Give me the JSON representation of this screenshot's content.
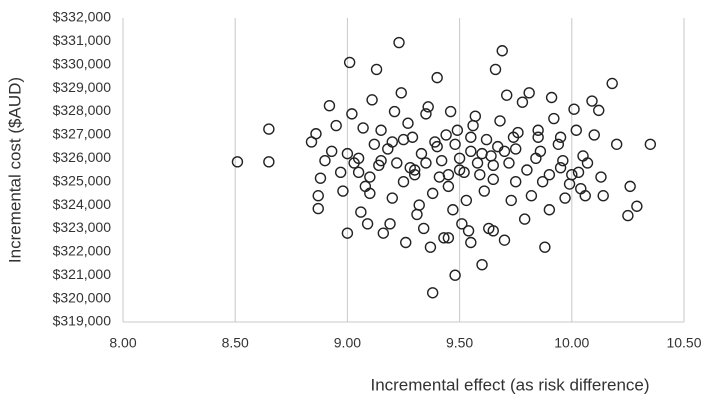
{
  "chart_data": {
    "type": "scatter",
    "x_label": "Incremental effect (as risk difference)",
    "y_label": "Incremental cost ($AUD)",
    "xlim": [
      8.0,
      10.5
    ],
    "ylim": [
      319000,
      332000
    ],
    "xticks": [
      {
        "value": 8.0,
        "label": "8.00"
      },
      {
        "value": 8.5,
        "label": "8.50"
      },
      {
        "value": 9.0,
        "label": "9.00"
      },
      {
        "value": 9.5,
        "label": "9.50"
      },
      {
        "value": 10.0,
        "label": "10.00"
      },
      {
        "value": 10.5,
        "label": "10.50"
      }
    ],
    "yticks": [
      {
        "value": 319000,
        "label": "$319,000"
      },
      {
        "value": 320000,
        "label": "$320,000"
      },
      {
        "value": 321000,
        "label": "$321,000"
      },
      {
        "value": 322000,
        "label": "$322,000"
      },
      {
        "value": 323000,
        "label": "$323,000"
      },
      {
        "value": 324000,
        "label": "$324,000"
      },
      {
        "value": 325000,
        "label": "$325,000"
      },
      {
        "value": 326000,
        "label": "$326,000"
      },
      {
        "value": 327000,
        "label": "$327,000"
      },
      {
        "value": 328000,
        "label": "$328,000"
      },
      {
        "value": 329000,
        "label": "$329,000"
      },
      {
        "value": 330000,
        "label": "$330,000"
      },
      {
        "value": 331000,
        "label": "$331,000"
      },
      {
        "value": 332000,
        "label": "$332,000"
      }
    ],
    "grid": true,
    "color": "#222222",
    "x": [
      8.51,
      8.65,
      8.65,
      9.01,
      9.23,
      9.69,
      9.38,
      9.48,
      9.6,
      9.88,
      9.0,
      10.18,
      10.35,
      10.29,
      10.25,
      10.26,
      10.14,
      10.2,
      10.09,
      10.12,
      9.13,
      9.4,
      9.66,
      8.87,
      8.87,
      8.84,
      8.92,
      8.86,
      8.88,
      8.95,
      9.05,
      9.1,
      9.15,
      9.2,
      9.25,
      9.3,
      9.35,
      9.45,
      9.55,
      9.65,
      9.75,
      9.85,
      9.95,
      10.05,
      9.5,
      9.52,
      9.48,
      9.58,
      9.42,
      9.62,
      9.33,
      9.44,
      9.56,
      9.67,
      9.72,
      9.28,
      9.38,
      9.47,
      9.53,
      9.61,
      9.18,
      9.22,
      9.27,
      9.31,
      9.36,
      9.41,
      9.46,
      9.51,
      9.57,
      9.63,
      9.68,
      9.73,
      9.78,
      9.82,
      9.87,
      9.92,
      9.97,
      10.02,
      9.08,
      9.12,
      9.16,
      9.21,
      9.26,
      9.29,
      9.34,
      9.39,
      9.43,
      9.49,
      9.54,
      9.59,
      9.64,
      9.7,
      9.74,
      9.79,
      9.84,
      9.9,
      9.94,
      9.99,
      10.03,
      10.07,
      8.97,
      9.02,
      9.06,
      9.11,
      9.14,
      9.19,
      9.24,
      9.32,
      9.37,
      9.45,
      9.55,
      9.65,
      9.71,
      9.76,
      9.81,
      9.86,
      9.91,
      9.96,
      10.0,
      10.04,
      9.4,
      9.5,
      9.6,
      9.35,
      9.45,
      9.55,
      9.65,
      9.3,
      9.7,
      9.25,
      9.8,
      9.2,
      9.75,
      9.15,
      9.85,
      9.1,
      9.9,
      9.05,
      9.95,
      9.0,
      8.93,
      8.98,
      9.03,
      9.07,
      10.1,
      10.06,
      10.13,
      10.01,
      8.9,
      9.09
    ],
    "values": [
      325850,
      325850,
      327250,
      330100,
      330950,
      330600,
      320250,
      321000,
      321450,
      322200,
      322800,
      329200,
      326600,
      323950,
      323550,
      324800,
      324400,
      326600,
      328450,
      328050,
      329800,
      329450,
      329800,
      323850,
      324400,
      326700,
      328250,
      327050,
      325150,
      327400,
      326000,
      325200,
      327200,
      324300,
      326800,
      325500,
      327900,
      324800,
      326300,
      325100,
      326400,
      327200,
      325600,
      326100,
      326000,
      325400,
      326600,
      325800,
      325900,
      326800,
      326200,
      327000,
      327400,
      326500,
      325800,
      325600,
      324500,
      323800,
      324200,
      324600,
      326400,
      325800,
      327500,
      323600,
      328200,
      325200,
      328000,
      323200,
      327800,
      323000,
      327600,
      324200,
      328400,
      324400,
      325000,
      327700,
      324300,
      327200,
      324800,
      326600,
      322800,
      328000,
      322400,
      326900,
      323000,
      326700,
      322600,
      327200,
      322900,
      325300,
      326100,
      322500,
      326900,
      323400,
      326000,
      323800,
      326600,
      324900,
      325400,
      325800,
      325400,
      327900,
      323700,
      328500,
      325700,
      323200,
      328800,
      324000,
      322200,
      322600,
      322400,
      322900,
      328700,
      327100,
      328800,
      326300,
      328600,
      325900,
      325300,
      324700,
      326500,
      325500,
      326200,
      325800,
      325300,
      326900,
      325700,
      325300,
      326300,
      325000,
      325500,
      326700,
      325000,
      325900,
      326900,
      324500,
      325300,
      325400,
      326900,
      326200,
      326300,
      324600,
      325800,
      327300,
      327000,
      324400,
      325200,
      328100,
      325900,
      323200
    ]
  }
}
